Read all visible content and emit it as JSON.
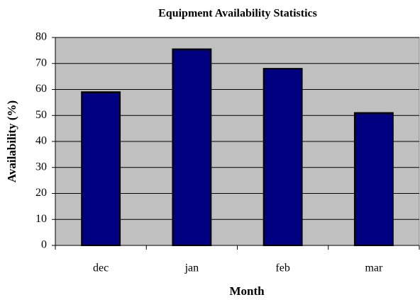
{
  "chart_data": {
    "type": "bar",
    "title": "Equipment Availability Statistics",
    "x_label": "Month",
    "y_label": "Availability (%)",
    "categories": [
      "dec",
      "jan",
      "feb",
      "mar"
    ],
    "values": [
      59,
      75.5,
      68,
      51
    ],
    "color": "#000080",
    "ylim": [
      0,
      80
    ],
    "yticks": [
      0,
      10,
      20,
      30,
      40,
      50,
      60,
      70,
      80
    ],
    "grid": true
  }
}
